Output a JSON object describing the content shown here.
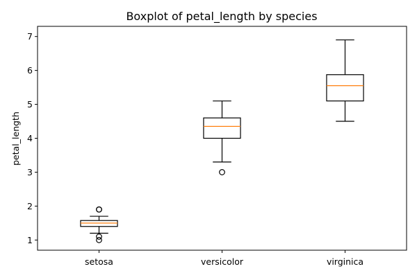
{
  "chart_data": {
    "type": "boxplot",
    "title": "Boxplot of petal_length by species",
    "xlabel": "",
    "ylabel": "petal_length",
    "ylim": [
      0.7,
      7.3
    ],
    "yticks": [
      1,
      2,
      3,
      4,
      5,
      6,
      7
    ],
    "categories": [
      "setosa",
      "versicolor",
      "virginica"
    ],
    "grid": false,
    "legend": "none",
    "colors": {
      "box": "#000000",
      "median": "#ff7f0e",
      "flier": "#000000",
      "background": "#ffffff"
    },
    "boxes": [
      {
        "category": "setosa",
        "whisker_low": 1.2,
        "q1": 1.4,
        "median": 1.5,
        "q3": 1.575,
        "whisker_high": 1.7,
        "fliers": [
          1.0,
          1.1,
          1.9,
          1.9
        ]
      },
      {
        "category": "versicolor",
        "whisker_low": 3.3,
        "q1": 4.0,
        "median": 4.35,
        "q3": 4.6,
        "whisker_high": 5.1,
        "fliers": [
          3.0
        ]
      },
      {
        "category": "virginica",
        "whisker_low": 4.5,
        "q1": 5.1,
        "median": 5.55,
        "q3": 5.875,
        "whisker_high": 6.9,
        "fliers": []
      }
    ]
  }
}
